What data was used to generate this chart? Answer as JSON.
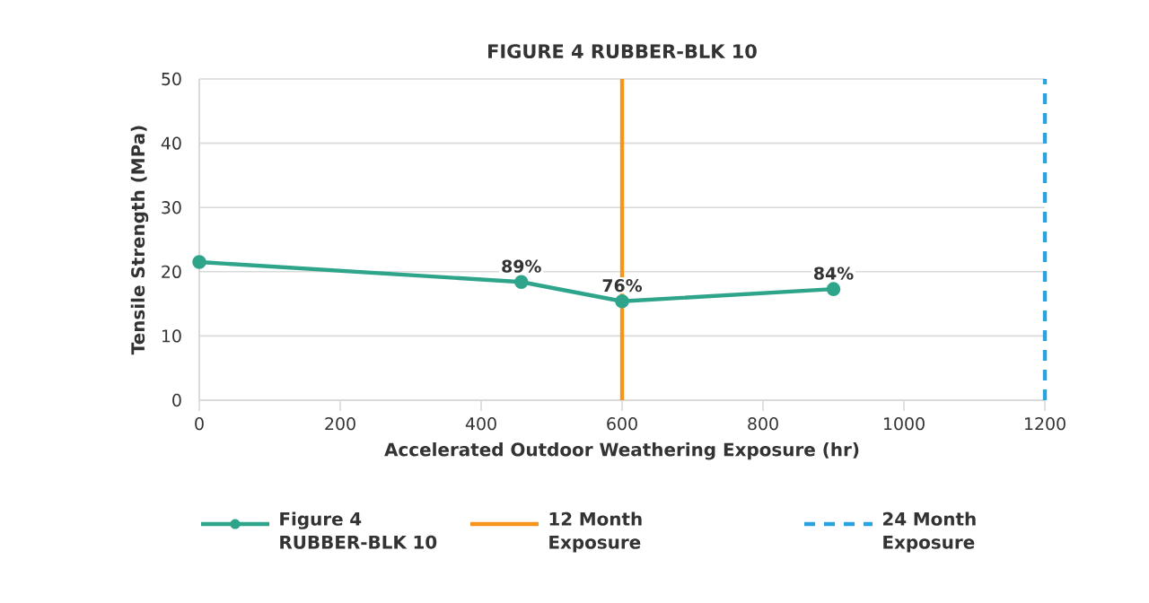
{
  "chart_data": {
    "type": "line",
    "title": "FIGURE 4 RUBBER-BLK 10",
    "xlabel": "Accelerated Outdoor Weathering Exposure (hr)",
    "ylabel": "Tensile Strength (MPa)",
    "x": [
      0,
      457,
      600,
      900
    ],
    "series": [
      {
        "name": "Figure 4 RUBBER-BLK 10",
        "color": "#2ea58b",
        "values": [
          21.5,
          18.4,
          15.4,
          17.3
        ]
      }
    ],
    "annotations": [
      {
        "text": "89%",
        "x": 457,
        "y": 18.4
      },
      {
        "text": "76%",
        "x": 600,
        "y": 15.4
      },
      {
        "text": "84%",
        "x": 900,
        "y": 17.3
      }
    ],
    "marker": "circle",
    "xlim": [
      0,
      1200
    ],
    "xticks": [
      0,
      200,
      400,
      600,
      800,
      1000,
      1200
    ],
    "ylim": [
      0,
      50
    ],
    "yticks": [
      0,
      10,
      20,
      30,
      40,
      50
    ],
    "grid": "y",
    "legend": "bottom",
    "ref_lines": [
      {
        "axis": "x",
        "value": 600,
        "label": "12 Month Exposure",
        "color": "#f7941d",
        "line_style": "solid"
      },
      {
        "axis": "x",
        "value": 1200,
        "label": "24 Month Exposure",
        "color": "#29a3e0",
        "line_style": "dashed"
      }
    ]
  }
}
